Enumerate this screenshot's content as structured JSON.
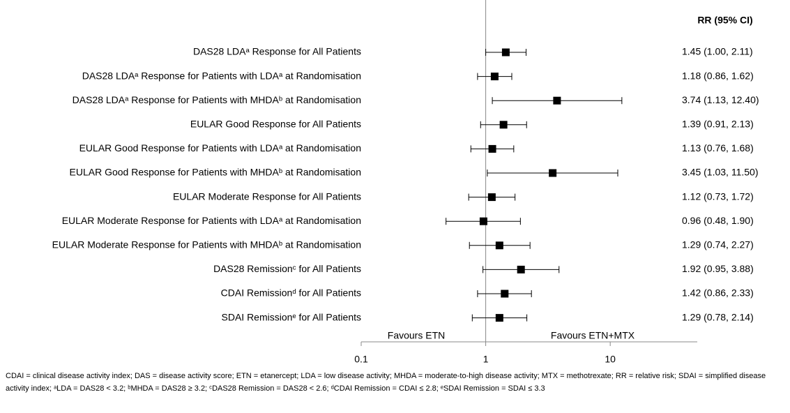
{
  "chart_data": {
    "type": "forest",
    "ci_header": "RR (95% CI)",
    "categories": [
      "DAS28 LDAᵃ Response for All Patients",
      "DAS28 LDAᵃ Response for Patients with LDAᵃ at Randomisation",
      "DAS28 LDAᵃ Response for Patients with MHDAᵇ at Randomisation",
      "EULAR Good Response for All Patients",
      "EULAR Good Response for Patients with LDAᵃ at Randomisation",
      "EULAR Good Response for Patients with MHDAᵇ at Randomisation",
      "EULAR Moderate Response for All Patients",
      "EULAR Moderate Response for Patients with LDAᵃ at Randomisation",
      "EULAR Moderate Response for Patients with MHDAᵇ at Randomisation",
      "DAS28 Remissionᶜ for All Patients",
      "CDAI Remissionᵈ for All Patients",
      "SDAI Remissionᵉ for All Patients"
    ],
    "values": [
      1.45,
      1.18,
      3.74,
      1.39,
      1.13,
      3.45,
      1.12,
      0.96,
      1.29,
      1.92,
      1.42,
      1.29
    ],
    "lower": [
      1.0,
      0.86,
      1.13,
      0.91,
      0.76,
      1.03,
      0.73,
      0.48,
      0.74,
      0.95,
      0.86,
      0.78
    ],
    "upper": [
      2.11,
      1.62,
      12.4,
      2.13,
      1.68,
      11.5,
      1.72,
      1.9,
      2.27,
      3.88,
      2.33,
      2.14
    ],
    "value_labels": [
      "1.45 (1.00, 2.11)",
      "1.18 (0.86, 1.62)",
      "3.74 (1.13, 12.40)",
      "1.39 (0.91, 2.13)",
      "1.13 (0.76, 1.68)",
      "3.45 (1.03, 11.50)",
      "1.12 (0.73, 1.72)",
      "0.96 (0.48, 1.90)",
      "1.29 (0.74, 2.27)",
      "1.92 (0.95, 3.88)",
      "1.42 (0.86, 2.33)",
      "1.29 (0.78, 2.14)"
    ],
    "annotations": [
      "Favours ETN",
      "Favours ETN+MTX"
    ],
    "reference_line": 1,
    "xlim": [
      0.1,
      50
    ],
    "xticks": [
      0.1,
      1,
      10
    ],
    "log_x": true,
    "color": "#000000"
  },
  "footnote": "CDAI = clinical disease activity index; DAS = disease activity score; ETN = etanercept; LDA = low disease activity; MHDA = moderate-to-high disease activity; MTX = methotrexate; RR = relative risk; SDAI = simplified disease activity index; ᵃLDA = DAS28 < 3.2; ᵇMHDA = DAS28 ≥ 3.2; ᶜDAS28 Remission = DAS28 < 2.6; ᵈCDAI Remission = CDAI ≤ 2.8; ᵉSDAI Remission = SDAI ≤ 3.3"
}
